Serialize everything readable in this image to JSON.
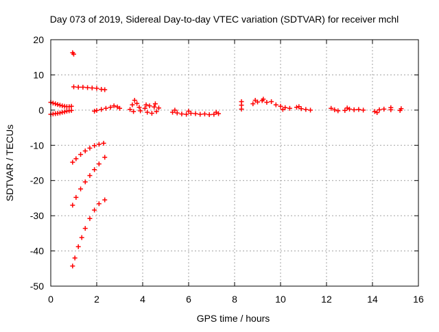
{
  "chart_data": {
    "type": "scatter",
    "title": "Day 073 of 2019, Sidereal Day-to-day VTEC variation (SDTVAR) for receiver mchl",
    "xlabel": "GPS time / hours",
    "ylabel": "SDTVAR / TECUs",
    "xlim": [
      0,
      16
    ],
    "ylim": [
      -50,
      20
    ],
    "xticks": [
      0,
      2,
      4,
      6,
      8,
      10,
      12,
      14,
      16
    ],
    "yticks": [
      -50,
      -40,
      -30,
      -20,
      -10,
      0,
      10,
      20
    ],
    "x_tick_labels": [
      "0",
      "2",
      "4",
      "6",
      "8",
      "10",
      "12",
      "14",
      "16"
    ],
    "y_tick_labels": [
      "-50",
      "-40",
      "-30",
      "-20",
      "-10",
      "0",
      "10",
      "20"
    ],
    "grid": true,
    "marker": "+",
    "color": "#ff0000",
    "series": [
      {
        "points": [
          [
            0.0,
            2.2
          ],
          [
            0.1,
            2.0
          ],
          [
            0.2,
            1.8
          ],
          [
            0.3,
            1.6
          ],
          [
            0.4,
            1.4
          ],
          [
            0.5,
            1.2
          ],
          [
            0.6,
            1.1
          ],
          [
            0.7,
            1.0
          ],
          [
            0.8,
            1.0
          ],
          [
            0.9,
            1.1
          ],
          [
            0.0,
            -1.2
          ],
          [
            0.1,
            -1.1
          ],
          [
            0.2,
            -1.0
          ],
          [
            0.3,
            -0.9
          ],
          [
            0.4,
            -0.8
          ],
          [
            0.5,
            -0.6
          ],
          [
            0.6,
            -0.5
          ],
          [
            0.7,
            -0.3
          ],
          [
            0.8,
            -0.2
          ],
          [
            0.9,
            -0.1
          ],
          [
            0.95,
            16.3
          ],
          [
            1.0,
            15.9
          ],
          [
            1.0,
            6.6
          ],
          [
            1.2,
            6.5
          ],
          [
            1.4,
            6.5
          ],
          [
            1.6,
            6.4
          ],
          [
            1.8,
            6.3
          ],
          [
            2.0,
            6.2
          ],
          [
            2.2,
            5.9
          ],
          [
            2.35,
            5.8
          ],
          [
            1.9,
            -0.3
          ],
          [
            2.0,
            -0.1
          ],
          [
            2.2,
            0.2
          ],
          [
            2.4,
            0.5
          ],
          [
            2.6,
            0.8
          ],
          [
            2.75,
            1.2
          ],
          [
            2.9,
            0.9
          ],
          [
            3.0,
            0.5
          ],
          [
            0.95,
            -14.8
          ],
          [
            1.1,
            -13.8
          ],
          [
            1.3,
            -12.6
          ],
          [
            1.5,
            -11.6
          ],
          [
            1.7,
            -10.8
          ],
          [
            1.9,
            -10.1
          ],
          [
            2.1,
            -9.7
          ],
          [
            2.3,
            -9.4
          ],
          [
            0.95,
            -27.0
          ],
          [
            1.1,
            -24.8
          ],
          [
            1.3,
            -22.4
          ],
          [
            1.5,
            -20.4
          ],
          [
            1.7,
            -18.6
          ],
          [
            1.9,
            -16.9
          ],
          [
            2.1,
            -15.3
          ],
          [
            2.35,
            -13.4
          ],
          [
            0.95,
            -44.3
          ],
          [
            1.05,
            -42.0
          ],
          [
            1.2,
            -38.8
          ],
          [
            1.35,
            -36.2
          ],
          [
            1.5,
            -33.6
          ],
          [
            1.7,
            -30.8
          ],
          [
            1.9,
            -28.4
          ],
          [
            2.1,
            -26.6
          ],
          [
            2.35,
            -25.5
          ],
          [
            3.45,
            0.2
          ],
          [
            3.55,
            1.5
          ],
          [
            3.65,
            2.8
          ],
          [
            3.75,
            1.9
          ],
          [
            3.85,
            0.8
          ],
          [
            3.6,
            -0.4
          ],
          [
            3.9,
            -0.2
          ],
          [
            4.1,
            0.5
          ],
          [
            4.3,
            1.2
          ],
          [
            4.5,
            0.9
          ],
          [
            4.7,
            0.6
          ],
          [
            4.2,
            -0.6
          ],
          [
            4.4,
            -0.9
          ],
          [
            4.6,
            -0.4
          ],
          [
            4.15,
            1.5
          ],
          [
            4.55,
            1.8
          ],
          [
            5.3,
            -0.6
          ],
          [
            5.5,
            -0.8
          ],
          [
            5.7,
            -1.1
          ],
          [
            5.9,
            -1.2
          ],
          [
            6.1,
            -0.9
          ],
          [
            6.3,
            -1.0
          ],
          [
            6.5,
            -1.2
          ],
          [
            6.7,
            -1.1
          ],
          [
            6.9,
            -1.3
          ],
          [
            7.1,
            -1.2
          ],
          [
            7.3,
            -1.0
          ],
          [
            5.4,
            0.0
          ],
          [
            6.0,
            -0.3
          ],
          [
            7.2,
            -0.6
          ],
          [
            8.3,
            0.3
          ],
          [
            8.3,
            1.4
          ],
          [
            8.3,
            2.4
          ],
          [
            8.8,
            1.8
          ],
          [
            9.0,
            2.3
          ],
          [
            9.2,
            2.7
          ],
          [
            9.4,
            2.2
          ],
          [
            9.6,
            2.4
          ],
          [
            9.25,
            3.1
          ],
          [
            8.9,
            2.8
          ],
          [
            9.8,
            1.5
          ],
          [
            10.0,
            1.1
          ],
          [
            10.2,
            0.7
          ],
          [
            10.4,
            0.5
          ],
          [
            10.1,
            0.2
          ],
          [
            10.7,
            0.8
          ],
          [
            10.9,
            0.4
          ],
          [
            11.1,
            0.2
          ],
          [
            11.3,
            0.0
          ],
          [
            10.8,
            1.0
          ],
          [
            12.2,
            0.5
          ],
          [
            12.35,
            0.1
          ],
          [
            12.5,
            -0.2
          ],
          [
            12.8,
            -0.1
          ],
          [
            13.0,
            0.3
          ],
          [
            13.2,
            0.1
          ],
          [
            13.4,
            0.2
          ],
          [
            13.6,
            0.0
          ],
          [
            12.9,
            0.6
          ],
          [
            14.1,
            -0.4
          ],
          [
            14.3,
            0.1
          ],
          [
            14.5,
            0.3
          ],
          [
            14.2,
            -0.7
          ],
          [
            14.8,
            0.7
          ],
          [
            14.8,
            0.1
          ],
          [
            15.2,
            -0.1
          ],
          [
            15.25,
            0.4
          ]
        ]
      }
    ]
  }
}
